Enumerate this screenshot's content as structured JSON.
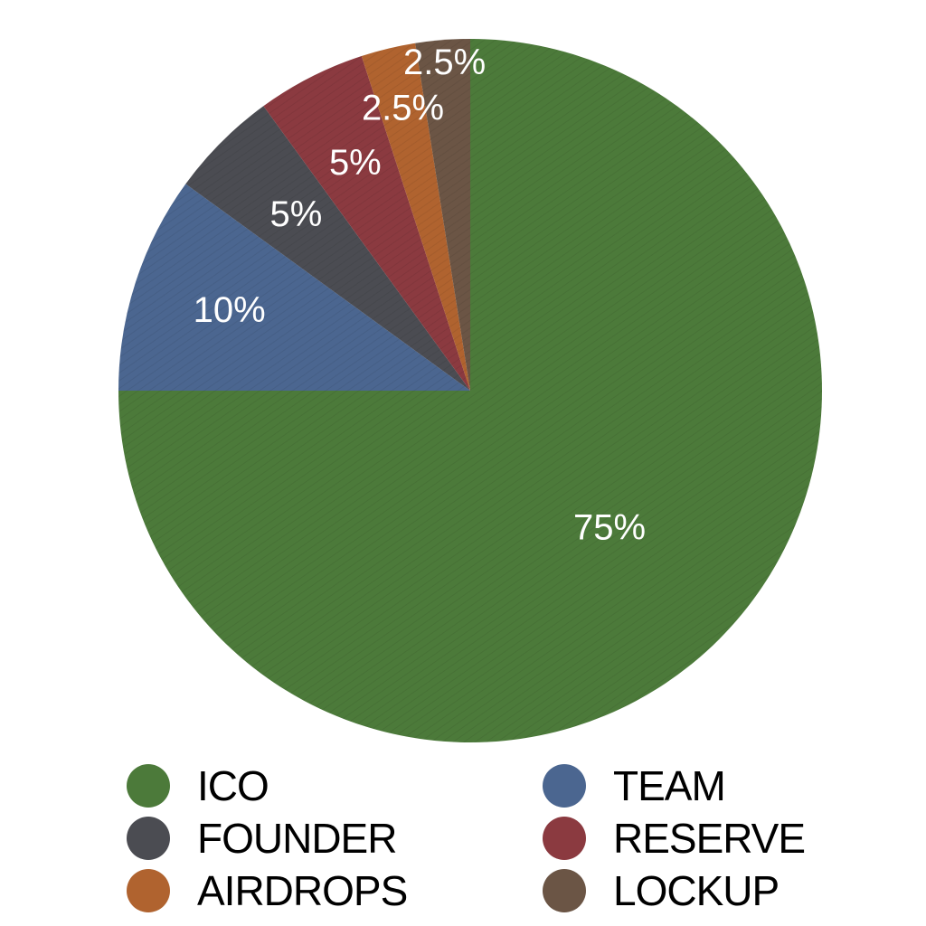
{
  "chart_data": {
    "type": "pie",
    "slices": [
      {
        "name": "ICO",
        "value": 75,
        "label": "75%",
        "color": "#4c7a3a"
      },
      {
        "name": "TEAM",
        "value": 10,
        "label": "10%",
        "color": "#4b6690"
      },
      {
        "name": "FOUNDER",
        "value": 5,
        "label": "5%",
        "color": "#4b4c52"
      },
      {
        "name": "RESERVE",
        "value": 5,
        "label": "5%",
        "color": "#8b3a40"
      },
      {
        "name": "AIRDROPS",
        "value": 2.5,
        "label": "2.5%",
        "color": "#b0632f"
      },
      {
        "name": "LOCKUP",
        "value": 2.5,
        "label": "2.5%",
        "color": "#6b5545"
      }
    ],
    "legend": {
      "placement": "bottom",
      "columns": 2,
      "items": [
        "ICO",
        "TEAM",
        "FOUNDER",
        "RESERVE",
        "AIRDROPS",
        "LOCKUP"
      ]
    }
  }
}
